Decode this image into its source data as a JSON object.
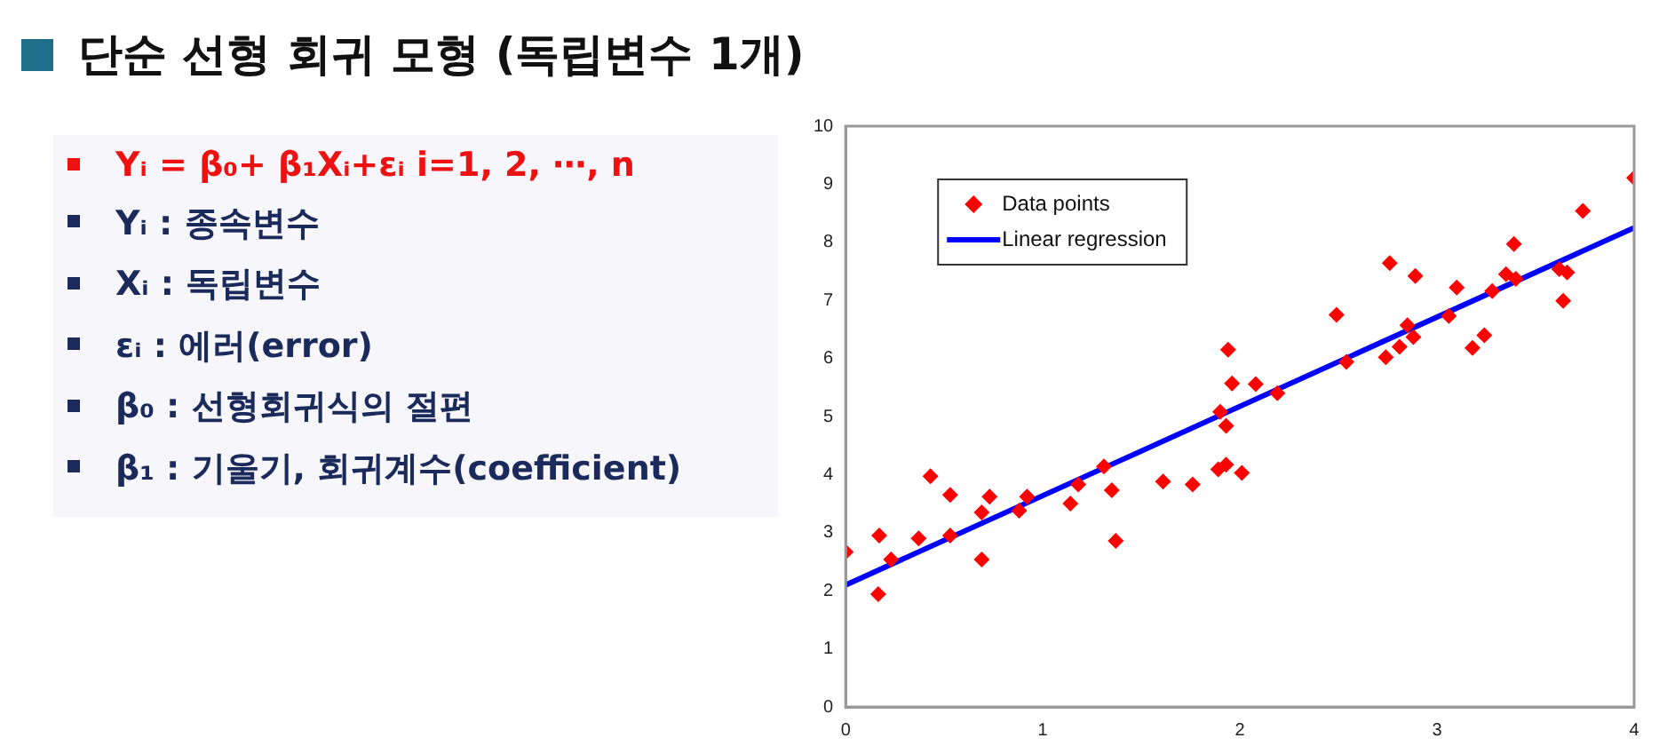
{
  "chart_data": {
    "type": "scatter",
    "title": "단순 선형 회귀 모형 (독립변수 1개)",
    "annotations": [
      "Yᵢ = β₀+ β₁Xᵢ+εᵢ   i=1, 2, ⋯, n",
      "Yᵢ : 종속변수",
      "Xᵢ : 독립변수",
      "εᵢ : 에러(error)",
      "β₀ : 선형회귀식의 절편",
      "β₁ : 기울기, 회귀계수(coefficient)"
    ],
    "series": [
      {
        "name": "Data points",
        "type": "scatter",
        "color": "#ff0000",
        "marker": "diamond",
        "x": [
          0,
          0.17,
          0.165,
          0.23,
          0.37,
          0.43,
          0.53,
          0.53,
          0.69,
          0.69,
          0.73,
          0.88,
          0.92,
          1.14,
          1.18,
          1.31,
          1.35,
          1.37,
          1.61,
          1.76,
          1.89,
          1.93,
          1.9,
          1.93,
          1.94,
          1.96,
          2.01,
          2.08,
          2.19,
          2.49,
          2.54,
          2.74,
          2.76,
          2.81,
          2.85,
          2.88,
          2.89,
          3.06,
          3.1,
          3.18,
          3.24,
          3.28,
          3.35,
          3.39,
          3.4,
          3.62,
          3.66,
          3.64,
          3.74,
          4
        ],
        "values": [
          2.67,
          2.95,
          1.94,
          2.54,
          2.9,
          3.97,
          3.65,
          2.95,
          3.35,
          2.54,
          3.62,
          3.38,
          3.62,
          3.5,
          3.83,
          4.14,
          3.73,
          2.86,
          3.88,
          3.83,
          4.09,
          4.17,
          5.08,
          4.84,
          6.15,
          5.57,
          4.03,
          5.56,
          5.4,
          6.75,
          5.94,
          6.02,
          7.64,
          6.2,
          6.57,
          6.37,
          7.42,
          6.73,
          7.22,
          6.18,
          6.4,
          7.16,
          7.45,
          7.97,
          7.37,
          7.54,
          7.48,
          6.99,
          8.54,
          9.11
        ]
      },
      {
        "name": "Linear regression",
        "type": "line",
        "color": "#0000ff",
        "marker": "none",
        "line_style": "solid",
        "x": [
          0,
          4
        ],
        "values": [
          2.1,
          8.25
        ]
      }
    ],
    "xlim": [
      0,
      4
    ],
    "xticks": [
      0,
      1,
      2,
      3,
      4
    ],
    "ylim": [
      0,
      10
    ],
    "yticks": [
      0,
      1,
      2,
      3,
      4,
      5,
      6,
      7,
      8,
      9,
      10
    ],
    "grid": false,
    "legend": "top left"
  }
}
